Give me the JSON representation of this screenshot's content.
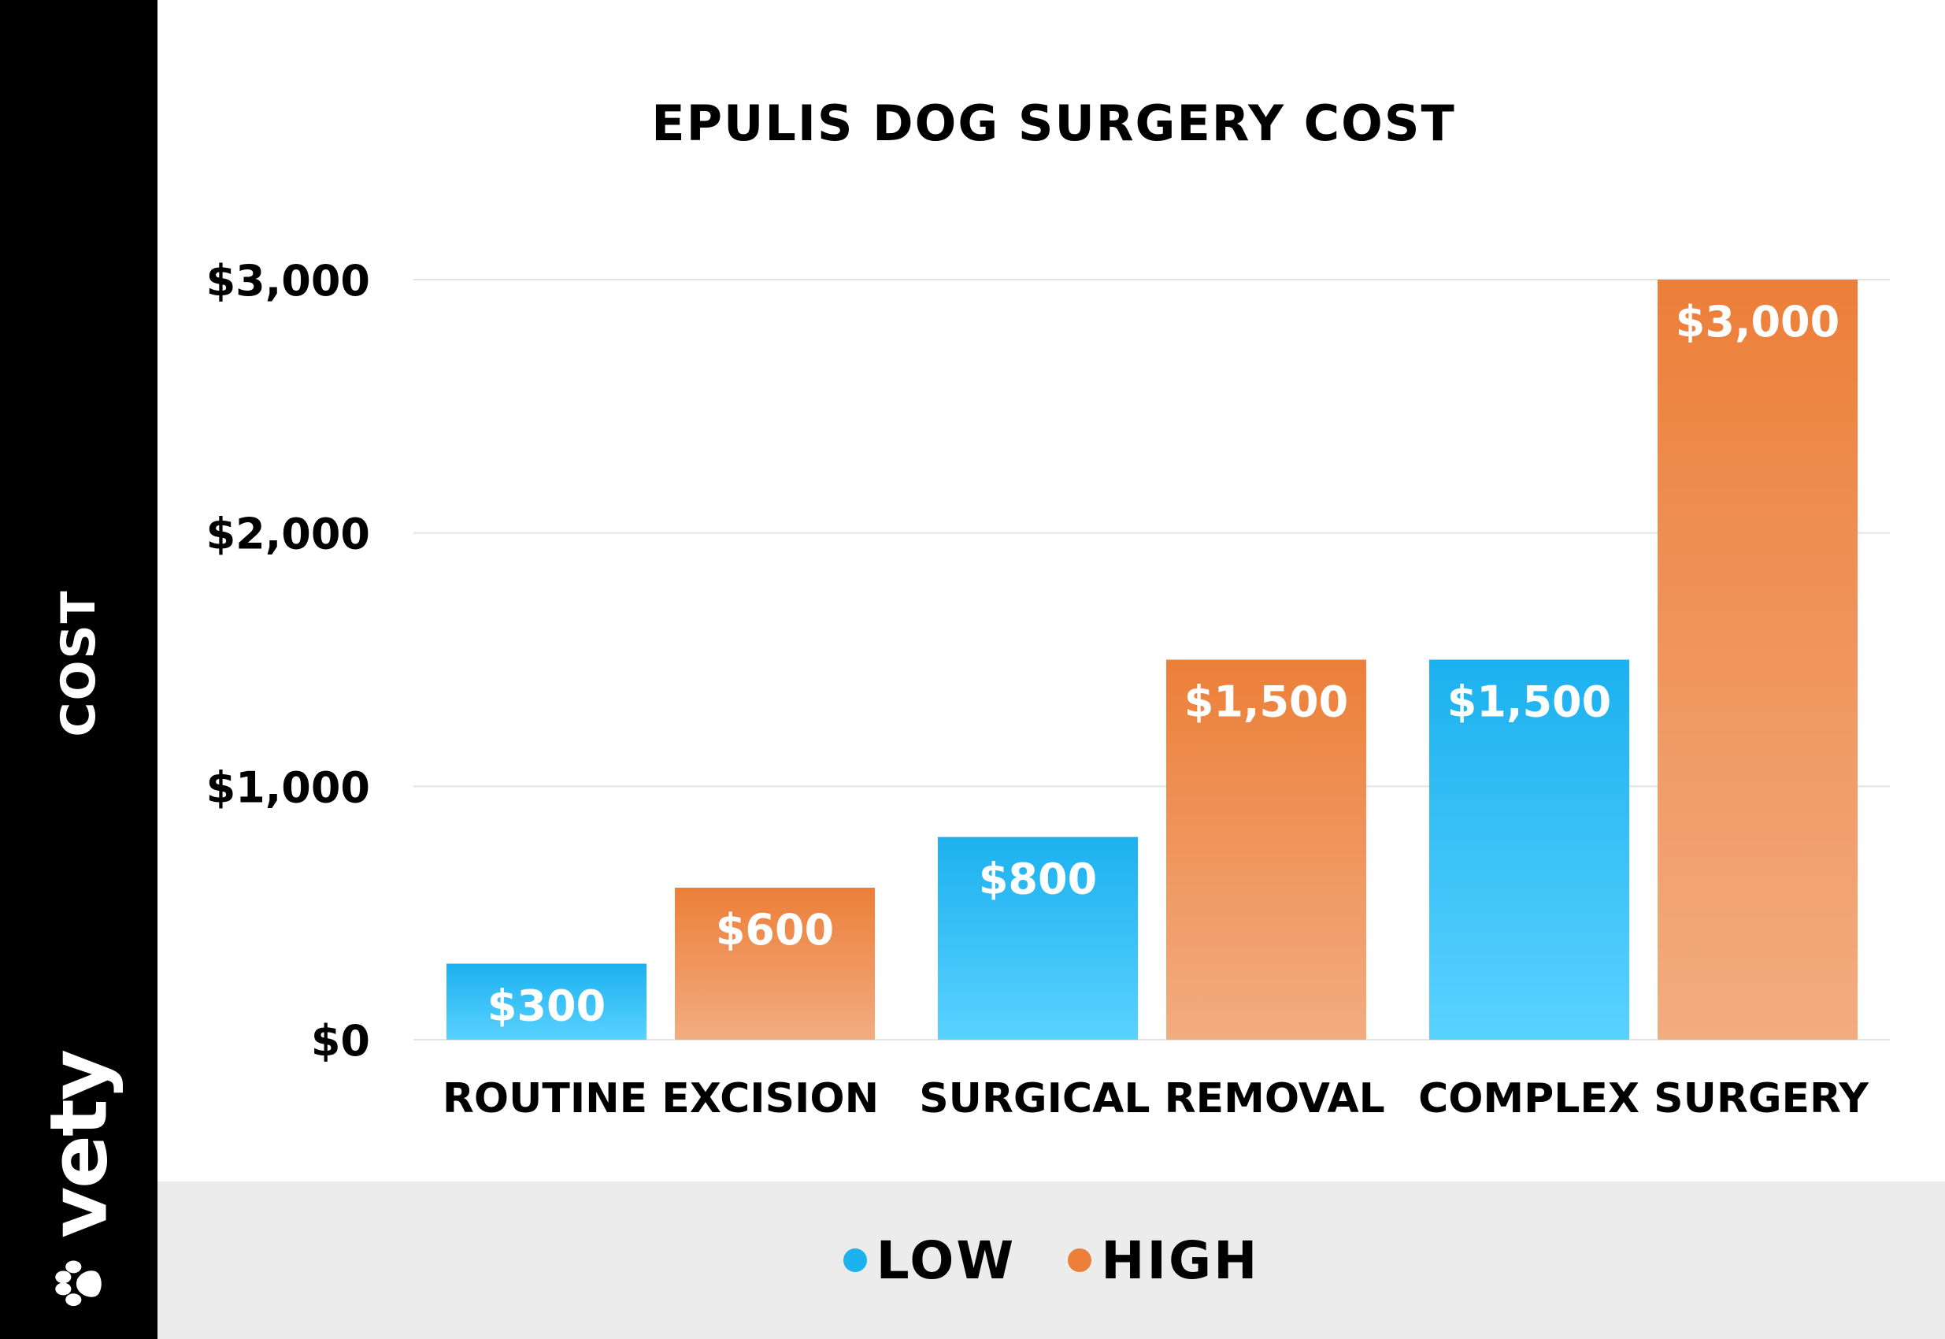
{
  "chart_data": {
    "type": "bar",
    "title": "EPULIS DOG SURGERY COST",
    "ylabel": "COST",
    "xlabel": "",
    "categories": [
      "ROUTINE EXCISION",
      "SURGICAL REMOVAL",
      "COMPLEX SURGERY"
    ],
    "series": [
      {
        "name": "LOW",
        "values": [
          300,
          800,
          1500
        ],
        "labels": [
          "$300",
          "$800",
          "$1,500"
        ],
        "color": "#1cb1ef"
      },
      {
        "name": "HIGH",
        "values": [
          600,
          1500,
          3000
        ],
        "labels": [
          "$600",
          "$1,500",
          "$3,000"
        ],
        "color": "#ec7f39"
      }
    ],
    "yticks": [
      {
        "value": 0,
        "label": "$0"
      },
      {
        "value": 1000,
        "label": "$1,000"
      },
      {
        "value": 2000,
        "label": "$2,000"
      },
      {
        "value": 3000,
        "label": "$3,000"
      }
    ],
    "ylim": [
      0,
      3000
    ],
    "grid": true,
    "legend_position": "bottom"
  },
  "brand": {
    "name": "vety"
  }
}
